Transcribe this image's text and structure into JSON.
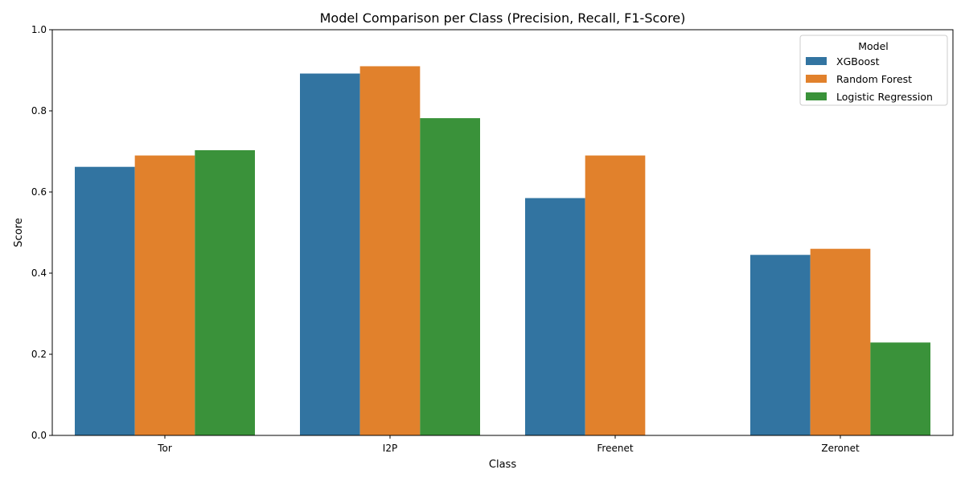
{
  "chart_data": {
    "type": "bar",
    "title": "Model Comparison per Class (Precision, Recall, F1-Score)",
    "xlabel": "Class",
    "ylabel": "Score",
    "categories": [
      "Tor",
      "I2P",
      "Freenet",
      "Zeronet"
    ],
    "ylim": [
      0,
      1
    ],
    "yticks": [
      0.0,
      0.2,
      0.4,
      0.6,
      0.8,
      1.0
    ],
    "ytick_labels": [
      "0.0",
      "0.2",
      "0.4",
      "0.6",
      "0.8",
      "1.0"
    ],
    "grid": false,
    "legend": {
      "title": "Model",
      "placement": "top-right"
    },
    "series": [
      {
        "name": "XGBoost",
        "color": "#3274a1",
        "values": [
          0.662,
          0.892,
          0.585,
          0.445
        ]
      },
      {
        "name": "Random Forest",
        "color": "#e1812c",
        "values": [
          0.69,
          0.91,
          0.69,
          0.46
        ]
      },
      {
        "name": "Logistic Regression",
        "color": "#3a923a",
        "values": [
          0.703,
          0.782,
          0.0,
          0.229
        ]
      }
    ]
  }
}
